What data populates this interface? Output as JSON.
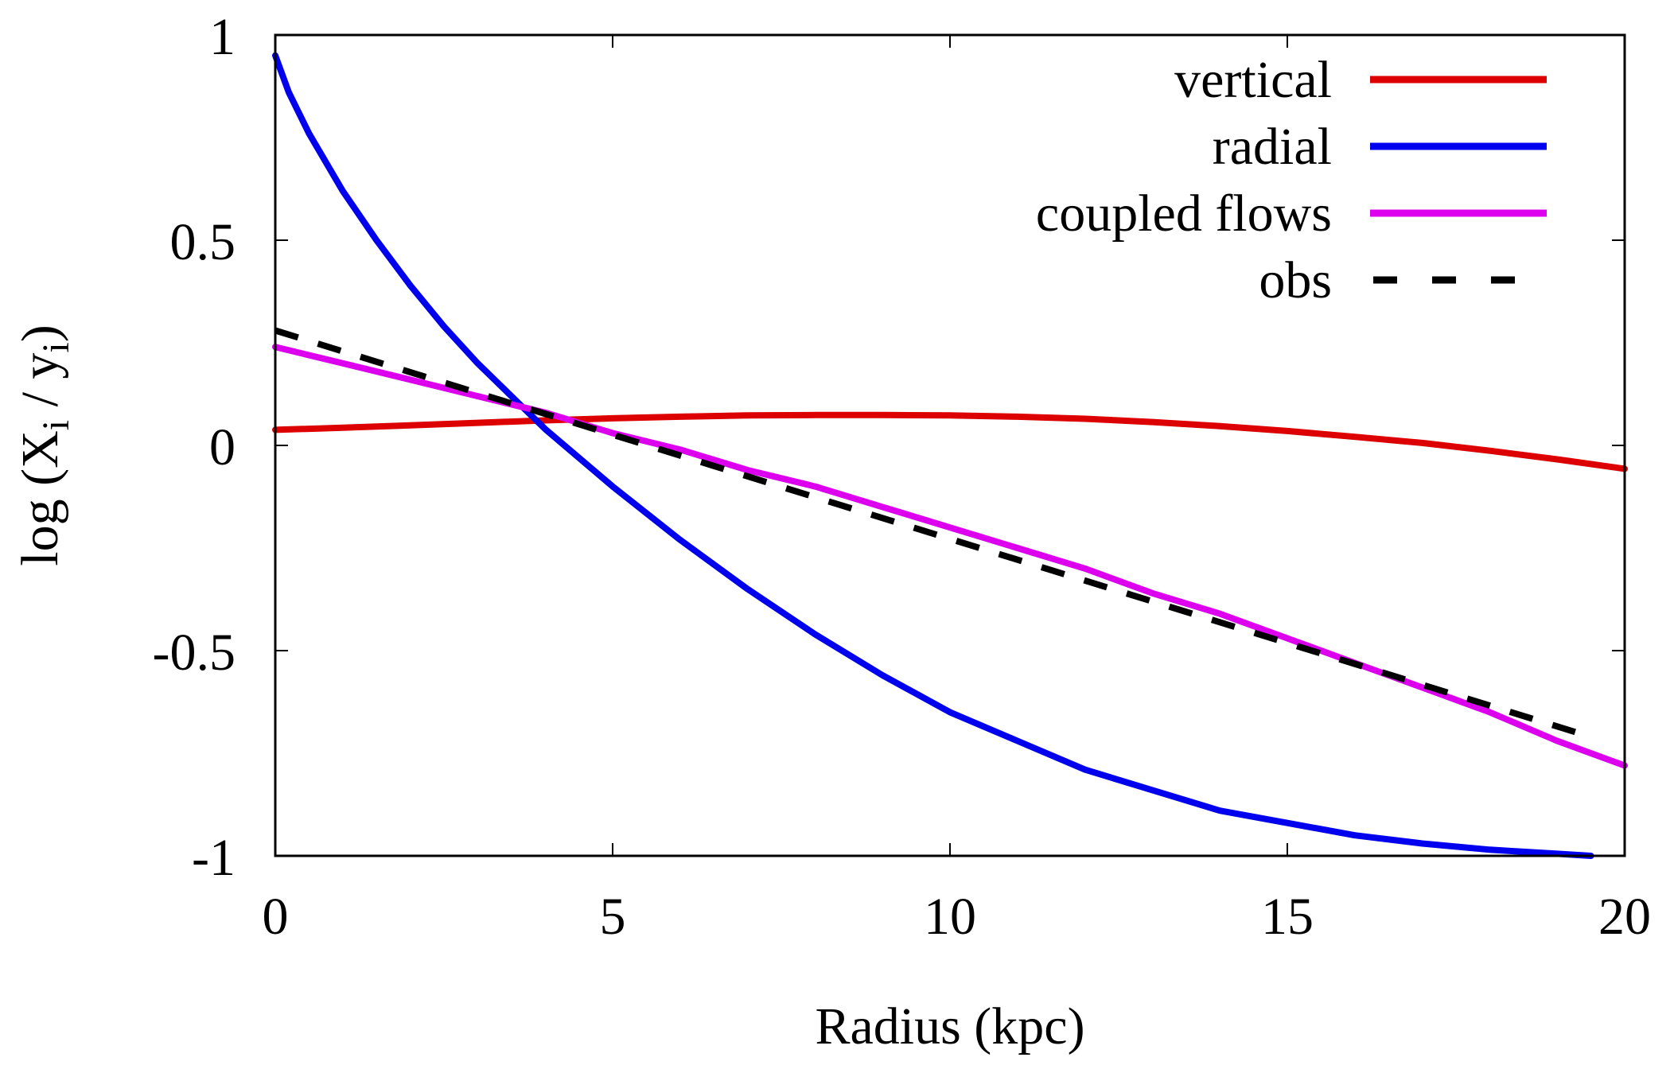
{
  "chart_data": {
    "type": "line",
    "title": "",
    "xlabel": "Radius (kpc)",
    "ylabel": "log (X",
    "ylabel_sub1": "i",
    "ylabel_mid": " / y",
    "ylabel_sub2": "i",
    "ylabel_end": ")",
    "xlim": [
      0,
      20
    ],
    "ylim": [
      -1,
      1
    ],
    "xticks": [
      0,
      5,
      10,
      15,
      20
    ],
    "xtick_labels": [
      "0",
      "5",
      "10",
      "15",
      "20"
    ],
    "yticks": [
      1,
      0.5,
      0,
      -0.5,
      -1
    ],
    "ytick_labels": [
      "1",
      "0.5",
      "0",
      "-0.5",
      "-1"
    ],
    "grid": false,
    "legend_position": "top-right",
    "series": [
      {
        "name": "vertical",
        "color": "#dd0000",
        "dash": "solid",
        "x": [
          0,
          1,
          2,
          3,
          4,
          5,
          6,
          7,
          8,
          9,
          10,
          11,
          12,
          13,
          14,
          15,
          16,
          17,
          18,
          19,
          20
        ],
        "y": [
          0.038,
          0.043,
          0.049,
          0.055,
          0.061,
          0.066,
          0.07,
          0.073,
          0.074,
          0.074,
          0.073,
          0.07,
          0.065,
          0.057,
          0.047,
          0.035,
          0.021,
          0.006,
          -0.013,
          -0.034,
          -0.057
        ]
      },
      {
        "name": "radial",
        "color": "#0000ee",
        "dash": "solid",
        "x": [
          0,
          0.2,
          0.5,
          1,
          1.5,
          2,
          2.5,
          3,
          3.5,
          4,
          5,
          6,
          7,
          8,
          9,
          10,
          11,
          12,
          13,
          14,
          15,
          16,
          17,
          18,
          19,
          19.5
        ],
        "y": [
          0.95,
          0.86,
          0.76,
          0.62,
          0.5,
          0.39,
          0.29,
          0.2,
          0.12,
          0.04,
          -0.1,
          -0.23,
          -0.35,
          -0.46,
          -0.56,
          -0.65,
          -0.72,
          -0.79,
          -0.84,
          -0.89,
          -0.92,
          -0.95,
          -0.97,
          -0.985,
          -0.995,
          -1.0
        ]
      },
      {
        "name": "coupled flows",
        "color": "#dd00ee",
        "dash": "solid",
        "x": [
          0,
          1,
          2,
          3,
          4,
          5,
          6,
          7,
          8,
          9,
          10,
          11,
          12,
          13,
          14,
          15,
          16,
          17,
          18,
          19,
          20
        ],
        "y": [
          0.24,
          0.2,
          0.16,
          0.12,
          0.08,
          0.03,
          -0.01,
          -0.06,
          -0.1,
          -0.15,
          -0.2,
          -0.25,
          -0.3,
          -0.36,
          -0.41,
          -0.47,
          -0.53,
          -0.59,
          -0.65,
          -0.72,
          -0.78
        ]
      },
      {
        "name": "obs",
        "color": "#000000",
        "dash": "dashed",
        "x": [
          0,
          19.5
        ],
        "y": [
          0.28,
          -0.71
        ]
      }
    ]
  },
  "colors": {
    "axis": "#000000",
    "background": "#ffffff"
  }
}
